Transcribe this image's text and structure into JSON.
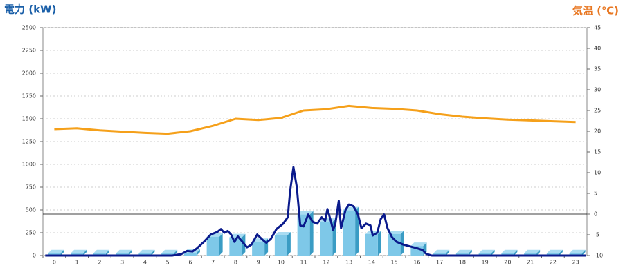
{
  "chart_data": {
    "type": "combo",
    "y_label": "電力 (kW)",
    "y2_label": "気温 (℃)",
    "categories": [
      "0",
      "1",
      "2",
      "3",
      "4",
      "5",
      "6",
      "7",
      "8",
      "9",
      "10",
      "11",
      "12",
      "13",
      "14",
      "15",
      "16",
      "17",
      "18",
      "19",
      "20",
      "21",
      "22",
      "23"
    ],
    "ylim": [
      0,
      2500
    ],
    "yticks": [
      0,
      250,
      500,
      750,
      1000,
      1250,
      1500,
      1750,
      2000,
      2250,
      2500
    ],
    "y2lim": [
      -10,
      45
    ],
    "y2ticks": [
      -10,
      -5,
      0,
      5,
      10,
      15,
      20,
      25,
      30,
      35,
      40,
      45
    ],
    "grid": true,
    "series": [
      {
        "type": "bar",
        "color": "#7ec8e8",
        "values": [
          25,
          25,
          25,
          25,
          25,
          25,
          30,
          205,
          200,
          150,
          220,
          450,
          370,
          495,
          235,
          235,
          105,
          25,
          25,
          25,
          25,
          25,
          25,
          25
        ]
      },
      {
        "type": "line",
        "axis": "y2",
        "color": "#f5a01a",
        "values": [
          20.5,
          20.7,
          20.2,
          19.9,
          19.6,
          19.4,
          20.0,
          21.3,
          23.0,
          22.7,
          23.2,
          25.0,
          25.3,
          26.1,
          25.6,
          25.4,
          25.0,
          24.1,
          23.5,
          23.1,
          22.8,
          22.6,
          22.4,
          22.2
        ]
      },
      {
        "type": "line",
        "color": "#0a1a8c",
        "x": [
          -0.4,
          5.2,
          5.6,
          5.85,
          6.1,
          6.3,
          6.6,
          6.9,
          7.2,
          7.35,
          7.5,
          7.65,
          7.8,
          7.95,
          8.1,
          8.3,
          8.5,
          8.7,
          8.95,
          9.2,
          9.35,
          9.55,
          9.8,
          10.1,
          10.3,
          10.4,
          10.55,
          10.7,
          10.85,
          11.0,
          11.2,
          11.4,
          11.6,
          11.8,
          11.95,
          12.05,
          12.2,
          12.3,
          12.4,
          12.55,
          12.65,
          12.85,
          13.0,
          13.2,
          13.4,
          13.55,
          13.75,
          13.95,
          14.05,
          14.25,
          14.4,
          14.55,
          14.7,
          14.9,
          15.1,
          15.4,
          15.7,
          16.0,
          16.25,
          16.4,
          16.65,
          23.45
        ],
        "values": [
          0,
          0,
          15,
          50,
          45,
          80,
          150,
          230,
          260,
          290,
          250,
          270,
          230,
          150,
          210,
          150,
          90,
          120,
          230,
          170,
          140,
          180,
          290,
          350,
          420,
          700,
          970,
          750,
          330,
          320,
          450,
          370,
          350,
          420,
          380,
          510,
          380,
          280,
          350,
          600,
          300,
          500,
          560,
          540,
          450,
          300,
          350,
          330,
          220,
          250,
          400,
          450,
          300,
          200,
          150,
          120,
          100,
          80,
          60,
          20,
          0,
          0
        ]
      }
    ]
  }
}
